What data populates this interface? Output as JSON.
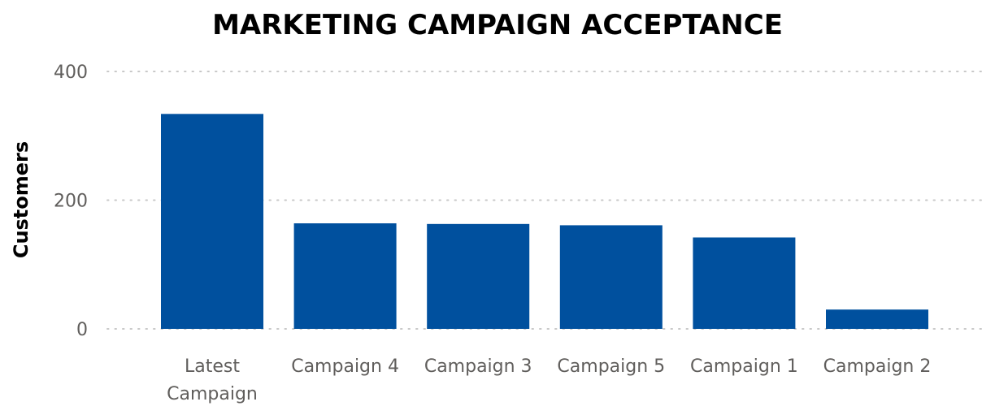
{
  "chart_data": {
    "type": "bar",
    "title": "MARKETING CAMPAIGN ACCEPTANCE",
    "xlabel": "",
    "ylabel": "Customers",
    "categories": [
      "Latest Campaign",
      "Campaign 4",
      "Campaign 3",
      "Campaign 5",
      "Campaign 1",
      "Campaign 2"
    ],
    "category_lines": [
      [
        "Latest",
        "Campaign"
      ],
      [
        "Campaign 4"
      ],
      [
        "Campaign 3"
      ],
      [
        "Campaign 5"
      ],
      [
        "Campaign 1"
      ],
      [
        "Campaign 2"
      ]
    ],
    "values": [
      334,
      164,
      163,
      161,
      142,
      30
    ],
    "ylim": [
      0,
      400
    ],
    "yticks": [
      0,
      200,
      400
    ],
    "ytick_labels": [
      "0",
      "200",
      "400"
    ],
    "bar_color": "#00509E",
    "grid": true,
    "legend": "none"
  }
}
